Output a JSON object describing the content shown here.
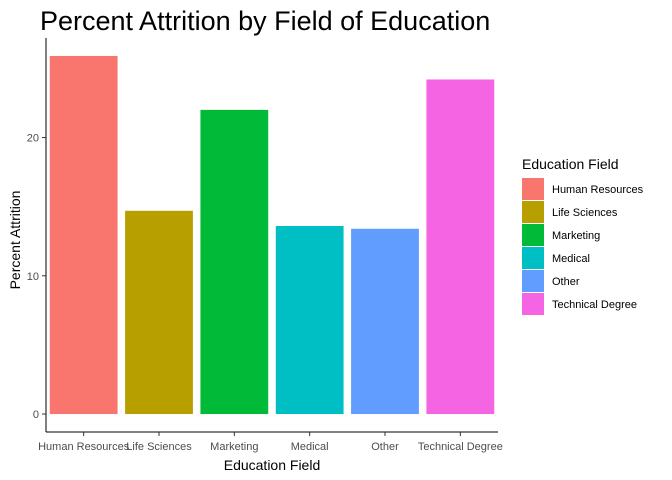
{
  "chart_data": {
    "type": "bar",
    "title": "Percent Attrition by Field of Education",
    "xlabel": "Education Field",
    "ylabel": "Percent Attrition",
    "categories": [
      "Human Resources",
      "Life Sciences",
      "Marketing",
      "Medical",
      "Other",
      "Technical Degree"
    ],
    "values": [
      25.9,
      14.7,
      22.0,
      13.6,
      13.4,
      24.2
    ],
    "colors": [
      "#F8766D",
      "#B79F00",
      "#00BA38",
      "#00BFC4",
      "#619CFF",
      "#F564E3"
    ],
    "ylim": [
      -1.3,
      27.2
    ],
    "yticks": [
      0,
      10,
      20
    ],
    "ytick_labels": [
      "0",
      "10",
      "20"
    ],
    "grid": false,
    "legend": {
      "title": "Education Field",
      "placement": "right",
      "entries": [
        "Human Resources",
        "Life Sciences",
        "Marketing",
        "Medical",
        "Other",
        "Technical Degree"
      ]
    }
  }
}
